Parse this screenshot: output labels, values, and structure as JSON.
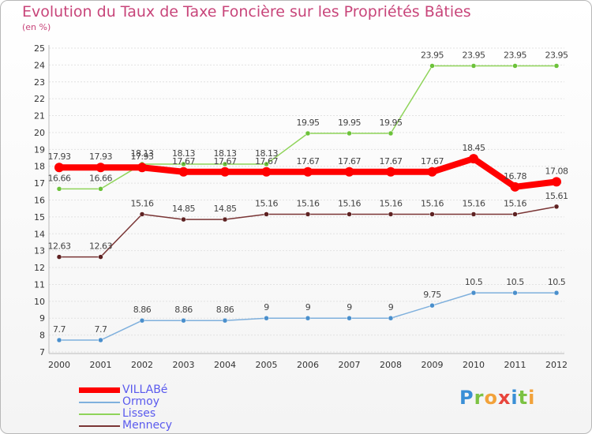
{
  "chart_data": {
    "type": "line",
    "title": "Evolution du Taux de Taxe Foncière sur les Propriétés Bâties",
    "subtitle": "(en %)",
    "categories": [
      "2000",
      "2001",
      "2002",
      "2003",
      "2004",
      "2005",
      "2006",
      "2007",
      "2008",
      "2009",
      "2010",
      "2011",
      "2012"
    ],
    "ylim": [
      7,
      25
    ],
    "yticks": [
      "7",
      "8",
      "9",
      "10",
      "11",
      "12",
      "13",
      "14",
      "15",
      "16",
      "17",
      "18",
      "19",
      "20",
      "21",
      "22",
      "23",
      "24",
      "25"
    ],
    "series": [
      {
        "name": "Lisses",
        "color": "#8fd45a",
        "point_color": "#6cc23a",
        "values": [
          16.66,
          16.66,
          18.13,
          18.13,
          18.13,
          18.13,
          19.95,
          19.95,
          19.95,
          23.95,
          23.95,
          23.95,
          23.95
        ],
        "labels": [
          "16.66",
          "16.66",
          "18.13",
          "18.13",
          "18.13",
          "18.13",
          "19.95",
          "19.95",
          "19.95",
          "23.95",
          "23.95",
          "23.95",
          "23.95"
        ]
      },
      {
        "name": "Ormoy",
        "color": "#7fb0dd",
        "point_color": "#4a8fcc",
        "values": [
          7.7,
          7.7,
          8.86,
          8.86,
          8.86,
          9,
          9,
          9,
          9,
          9.75,
          10.5,
          10.5,
          10.5
        ],
        "labels": [
          "7.7",
          "7.7",
          "8.86",
          "8.86",
          "8.86",
          "9",
          "9",
          "9",
          "9",
          "9.75",
          "10.5",
          "10.5",
          "10.5"
        ]
      },
      {
        "name": "Mennecy",
        "color": "#7a3535",
        "point_color": "#5e2222",
        "values": [
          12.63,
          12.63,
          15.16,
          14.85,
          14.85,
          15.16,
          15.16,
          15.16,
          15.16,
          15.16,
          15.16,
          15.16,
          15.61
        ],
        "labels": [
          "12.63",
          "12.63",
          "15.16",
          "14.85",
          "14.85",
          "15.16",
          "15.16",
          "15.16",
          "15.16",
          "15.16",
          "15.16",
          "15.16",
          "15.61"
        ]
      },
      {
        "name": "VILLABé",
        "color": "#ff0000",
        "point_color": "#ff0000",
        "bold": true,
        "values": [
          17.93,
          17.93,
          17.93,
          17.67,
          17.67,
          17.67,
          17.67,
          17.67,
          17.67,
          17.67,
          18.45,
          16.78,
          17.08
        ],
        "labels": [
          "17.93",
          "17.93",
          "17.93",
          "17.67",
          "17.67",
          "17.67",
          "17.67",
          "17.67",
          "17.67",
          "17.67",
          "18.45",
          "16.78",
          "17.08"
        ]
      }
    ],
    "legend_order": [
      "VILLABé",
      "Ormoy",
      "Lisses",
      "Mennecy"
    ]
  },
  "legend": [
    {
      "label": "VILLABé",
      "color": "#ff0000"
    },
    {
      "label": "Ormoy",
      "color": "#7fb0dd"
    },
    {
      "label": "Lisses",
      "color": "#8fd45a"
    },
    {
      "label": "Mennecy",
      "color": "#7a3535"
    }
  ],
  "logo": {
    "letters": [
      {
        "char": "P",
        "color": "#3a8fd6"
      },
      {
        "char": "r",
        "color": "#7cc243"
      },
      {
        "char": "o",
        "color": "#f2a23a"
      },
      {
        "char": "x",
        "color": "#e8453c"
      },
      {
        "char": "i",
        "color": "#3a8fd6"
      },
      {
        "char": "t",
        "color": "#7cc243"
      },
      {
        "char": "i",
        "color": "#f2a23a"
      }
    ]
  }
}
